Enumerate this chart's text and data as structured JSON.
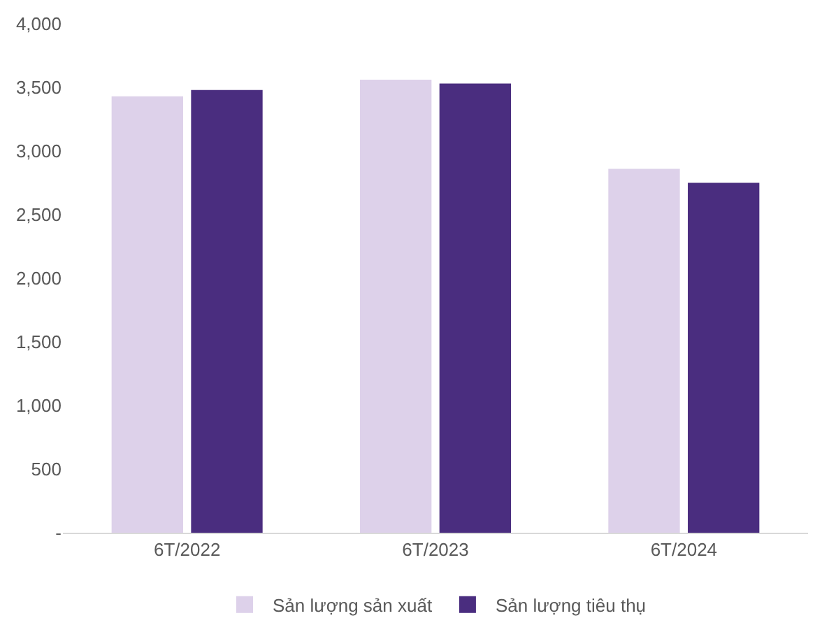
{
  "chart_data": {
    "type": "bar",
    "categories": [
      "6T/2022",
      "6T/2023",
      "6T/2024"
    ],
    "series": [
      {
        "name": "Sản lượng sản xuất",
        "color": "#ddd1ea",
        "values": [
          3430,
          3560,
          2860
        ]
      },
      {
        "name": "Sản lượng tiêu thụ",
        "color": "#4a2d7f",
        "values": [
          3480,
          3530,
          2750
        ]
      }
    ],
    "ylim": [
      0,
      4000
    ],
    "yticks": [
      {
        "value": 0,
        "label": "-"
      },
      {
        "value": 500,
        "label": "500"
      },
      {
        "value": 1000,
        "label": "1,000"
      },
      {
        "value": 1500,
        "label": "1,500"
      },
      {
        "value": 2000,
        "label": "2,000"
      },
      {
        "value": 2500,
        "label": "2,500"
      },
      {
        "value": 3000,
        "label": "3,000"
      },
      {
        "value": 3500,
        "label": "3,500"
      },
      {
        "value": 4000,
        "label": "4,000"
      }
    ],
    "legend": "bottom"
  }
}
